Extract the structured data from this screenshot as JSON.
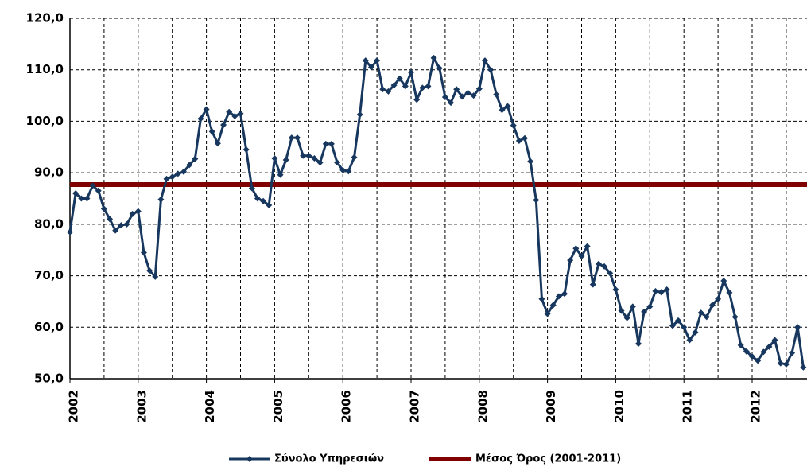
{
  "chart_data": {
    "type": "line",
    "categories": [
      "2002",
      null,
      null,
      null,
      null,
      null,
      null,
      null,
      null,
      null,
      null,
      null,
      "2003",
      null,
      null,
      null,
      null,
      null,
      null,
      null,
      null,
      null,
      null,
      null,
      "2004",
      null,
      null,
      null,
      null,
      null,
      null,
      null,
      null,
      null,
      null,
      null,
      "2005",
      null,
      null,
      null,
      null,
      null,
      null,
      null,
      null,
      null,
      null,
      null,
      "2006",
      null,
      null,
      null,
      null,
      null,
      null,
      null,
      null,
      null,
      null,
      null,
      "2007",
      null,
      null,
      null,
      null,
      null,
      null,
      null,
      null,
      null,
      null,
      null,
      "2008",
      null,
      null,
      null,
      null,
      null,
      null,
      null,
      null,
      null,
      null,
      null,
      "2009",
      null,
      null,
      null,
      null,
      null,
      null,
      null,
      null,
      null,
      null,
      null,
      "2010",
      null,
      null,
      null,
      null,
      null,
      null,
      null,
      null,
      null,
      null,
      null,
      "2011",
      null,
      null,
      null,
      null,
      null,
      null,
      null,
      null,
      null,
      null,
      null,
      "2012",
      null,
      null,
      null,
      null,
      null,
      null,
      null,
      null,
      null
    ],
    "series": [
      {
        "name": "Σύνολο Υπηρεσιών",
        "color": "#17375e",
        "values": [
          78.5,
          86,
          85,
          85,
          87.5,
          86.5,
          83,
          81,
          78.8,
          79.8,
          80,
          82,
          82.5,
          74.5,
          71,
          69.8,
          84.8,
          88.8,
          89.2,
          89.8,
          90.2,
          91.5,
          92.7,
          100.5,
          102.3,
          98,
          95.7,
          99.3,
          101.8,
          101,
          101.5,
          94.5,
          87,
          85,
          84.5,
          83.7,
          92.8,
          89.6,
          92.5,
          96.8,
          96.8,
          93.3,
          93.3,
          92.8,
          92,
          95.6,
          95.6,
          92,
          90.5,
          90.3,
          93,
          101.3,
          111.8,
          110.5,
          111.8,
          106.2,
          105.8,
          107,
          108.3,
          106.8,
          109.5,
          104.2,
          106.5,
          106.8,
          112.3,
          110.3,
          104.7,
          103.6,
          106.2,
          104.8,
          105.5,
          105,
          106.3,
          111.8,
          110,
          105.2,
          102.2,
          102.9,
          99.2,
          96.2,
          96.7,
          92.2,
          84.7,
          65.5,
          62.6,
          64.3,
          66,
          66.5,
          73,
          75.3,
          73.8,
          75.7,
          68.3,
          72.3,
          71.8,
          70.5,
          67.3,
          63.2,
          61.8,
          64,
          56.8,
          63,
          64,
          67,
          66.8,
          67.3,
          60.3,
          61.3,
          60,
          57.5,
          59,
          62.8,
          62,
          64.3,
          65.5,
          69,
          66.7,
          62,
          56.5,
          55.3,
          54.3,
          53.5,
          55.2,
          56.2,
          57.5,
          53,
          52.8,
          55,
          60,
          52.2
        ]
      },
      {
        "name": "Μέσος Όρος (2001-2011)",
        "color": "#800000",
        "value": 87.7
      }
    ],
    "ylim": [
      50,
      120
    ],
    "yticks": [
      {
        "value": 50,
        "label": "50,0"
      },
      {
        "value": 60,
        "label": "60,0"
      },
      {
        "value": 70,
        "label": "70,0"
      },
      {
        "value": 80,
        "label": "80,0"
      },
      {
        "value": 90,
        "label": "90,0"
      },
      {
        "value": 100,
        "label": "100,0"
      },
      {
        "value": 110,
        "label": "110,0"
      },
      {
        "value": 120,
        "label": "120,0"
      }
    ],
    "grid": true,
    "legend": "bottom"
  }
}
